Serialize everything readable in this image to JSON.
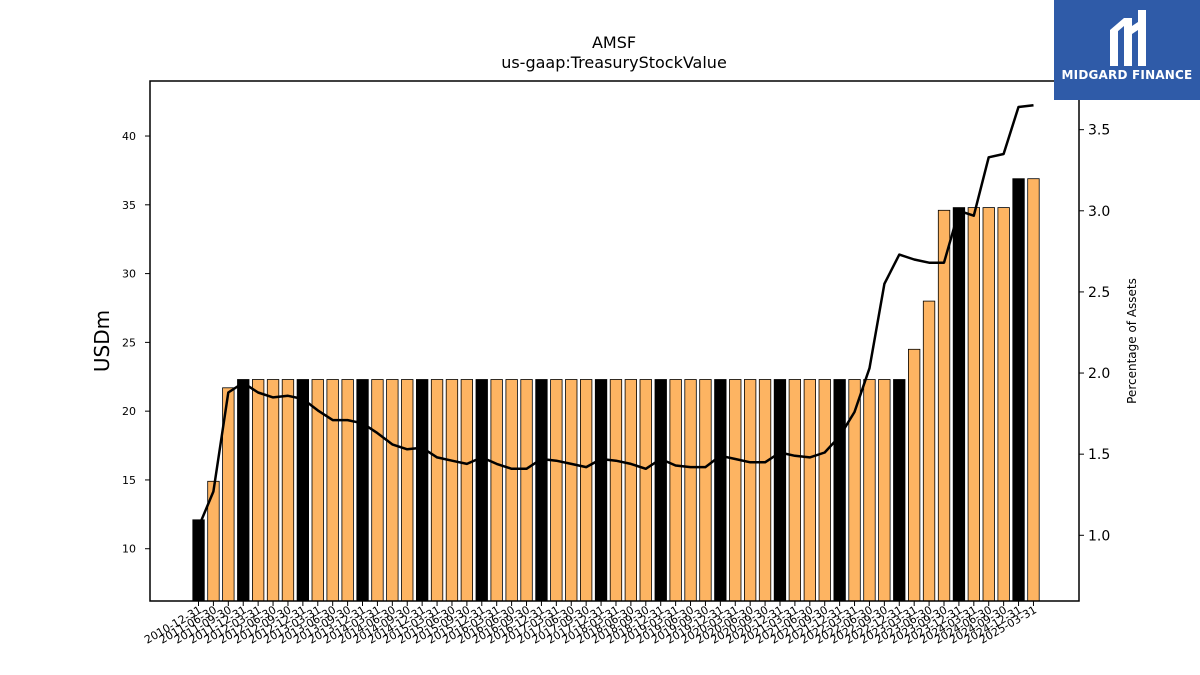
{
  "chart_data": {
    "type": "bar",
    "title": "AMSF",
    "subtitle": "us-gaap:TreasuryStockValue",
    "ylabel": "USDm",
    "y2label": "Percentage of Assets",
    "ylim": [
      6.2,
      44.0
    ],
    "y2lim": [
      0.595,
      3.8
    ],
    "yticks": [
      10,
      15,
      20,
      25,
      30,
      35,
      40
    ],
    "y2ticks": [
      "1.0",
      "1.5",
      "2.0",
      "2.5",
      "3.0",
      "3.5"
    ],
    "grid": false,
    "legend": "none",
    "colors": {
      "bar": "#fdb462",
      "bar_highlight": "#000000",
      "edge": "#000000",
      "line": "#000000"
    },
    "categories": [
      "2010-12-31",
      "2011-06-30",
      "2011-09-30",
      "2011-12-31",
      "2012-03-31",
      "2012-06-30",
      "2012-09-30",
      "2012-12-31",
      "2013-03-31",
      "2013-06-30",
      "2013-09-30",
      "2013-12-31",
      "2014-03-31",
      "2014-06-30",
      "2014-09-30",
      "2014-12-31",
      "2015-03-31",
      "2015-06-30",
      "2015-09-30",
      "2015-12-31",
      "2016-03-31",
      "2016-06-30",
      "2016-09-30",
      "2016-12-31",
      "2017-03-31",
      "2017-06-30",
      "2017-09-30",
      "2017-12-31",
      "2018-03-31",
      "2018-06-30",
      "2018-09-30",
      "2018-12-31",
      "2019-03-31",
      "2019-06-30",
      "2019-09-30",
      "2019-12-31",
      "2020-03-31",
      "2020-06-30",
      "2020-09-30",
      "2020-12-31",
      "2021-03-31",
      "2021-06-30",
      "2021-09-30",
      "2021-12-31",
      "2022-03-31",
      "2022-06-30",
      "2022-09-30",
      "2022-12-31",
      "2023-03-31",
      "2023-06-30",
      "2023-09-30",
      "2023-12-31",
      "2024-03-31",
      "2024-06-30",
      "2024-09-30",
      "2024-12-31",
      "2025-03-31"
    ],
    "xtick_labels": [
      "2010-12-31",
      "2011-06-30",
      "2011-09-30",
      "2011-12-31",
      "2012-03-31",
      "2012-06-30",
      "2012-09-30",
      "2012-12-31",
      "2013-03-31",
      "2013-06-30",
      "2013-09-30",
      "2013-12-31",
      "2014-03-31",
      "2014-06-30",
      "2014-09-30",
      "2014-12-31",
      "2015-03-31",
      "2015-06-30",
      "2015-09-30",
      "2015-12-31",
      "2016-03-31",
      "2016-06-30",
      "2016-09-30",
      "2016-12-31",
      "2017-03-31",
      "2017-06-30",
      "2017-09-30",
      "2017-12-31",
      "2018-03-31",
      "2018-06-30",
      "2018-09-30",
      "2018-12-31",
      "2019-03-31",
      "2019-06-30",
      "2019-09-30",
      "2019-12-31",
      "2020-03-31",
      "2020-06-30",
      "2020-09-30",
      "2020-12-31",
      "2021-03-31",
      "2021-06-30",
      "2021-09-30",
      "2021-12-31",
      "2022-03-31",
      "2022-06-30",
      "2022-09-30",
      "2022-12-31",
      "2023-03-31",
      "2023-06-30",
      "2023-09-30",
      "2023-12-31",
      "2024-03-31",
      "2024-06-30",
      "2024-09-30",
      "2024-12-31",
      "2025-03-31"
    ],
    "highlight": [
      true,
      false,
      false,
      true,
      false,
      false,
      false,
      true,
      false,
      false,
      false,
      true,
      false,
      false,
      false,
      true,
      false,
      false,
      false,
      true,
      false,
      false,
      false,
      true,
      false,
      false,
      false,
      true,
      false,
      false,
      false,
      true,
      false,
      false,
      false,
      true,
      false,
      false,
      false,
      true,
      false,
      false,
      false,
      true,
      false,
      false,
      false,
      true,
      false,
      false,
      false,
      true,
      false,
      false,
      false,
      true,
      false
    ],
    "series": [
      {
        "name": "",
        "axis": "left",
        "kind": "bar",
        "values": [
          12.1,
          14.9,
          21.7,
          22.3,
          22.3,
          22.3,
          22.3,
          22.3,
          22.3,
          22.3,
          22.3,
          22.3,
          22.3,
          22.3,
          22.3,
          22.3,
          22.3,
          22.3,
          22.3,
          22.3,
          22.3,
          22.3,
          22.3,
          22.3,
          22.3,
          22.3,
          22.3,
          22.3,
          22.3,
          22.3,
          22.3,
          22.3,
          22.3,
          22.3,
          22.3,
          22.3,
          22.3,
          22.3,
          22.3,
          22.3,
          22.3,
          22.3,
          22.3,
          22.3,
          22.3,
          22.3,
          22.3,
          22.3,
          24.5,
          28.0,
          34.6,
          34.8,
          34.8,
          34.8,
          34.8,
          36.9,
          36.9
        ]
      },
      {
        "name": "",
        "axis": "right",
        "kind": "line",
        "values": [
          1.05,
          1.27,
          1.88,
          1.94,
          1.88,
          1.85,
          1.86,
          1.84,
          1.77,
          1.71,
          1.71,
          1.69,
          1.63,
          1.56,
          1.53,
          1.54,
          1.48,
          1.46,
          1.44,
          1.48,
          1.44,
          1.41,
          1.41,
          1.47,
          1.46,
          1.44,
          1.42,
          1.47,
          1.46,
          1.44,
          1.41,
          1.47,
          1.43,
          1.42,
          1.42,
          1.49,
          1.47,
          1.45,
          1.45,
          1.51,
          1.49,
          1.48,
          1.51,
          1.61,
          1.76,
          2.03,
          2.55,
          2.73,
          2.7,
          2.68,
          2.68,
          3.0,
          2.97,
          3.33,
          3.35,
          3.64,
          3.65
        ]
      }
    ]
  },
  "logo": {
    "wordmark": "MIDGARD FINANCE",
    "icon": "midgard-logo-icon"
  }
}
